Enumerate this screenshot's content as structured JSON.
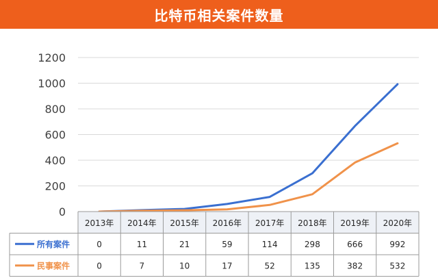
{
  "title": "比特币相关案件数量",
  "colors": {
    "title_bg": "#ee5f1c",
    "all_cases": "#3a6fd0",
    "civil_cases": "#f0924a",
    "grid": "#d9d9d9",
    "table_header_bg": "#eef1f6",
    "table_border": "#9a9a9a"
  },
  "chart_data": {
    "type": "line",
    "title": "比特币相关案件数量",
    "categories": [
      "2013年",
      "2014年",
      "2015年",
      "2016年",
      "2017年",
      "2018年",
      "2019年",
      "2020年"
    ],
    "y_ticks": [
      "0",
      "200",
      "400",
      "600",
      "800",
      "1000",
      "1200"
    ],
    "ylim": [
      0,
      1200
    ],
    "grid": true,
    "legend_position": "bottom-table",
    "series": [
      {
        "name": "所有案件",
        "color": "#3a6fd0",
        "values": [
          0,
          11,
          21,
          59,
          114,
          298,
          666,
          992
        ],
        "labels": [
          "0",
          "11",
          "21",
          "59",
          "114",
          "298",
          "666",
          "992"
        ]
      },
      {
        "name": "民事案件",
        "color": "#f0924a",
        "values": [
          0,
          7,
          10,
          17,
          52,
          135,
          382,
          532
        ],
        "labels": [
          "0",
          "7",
          "10",
          "17",
          "52",
          "135",
          "382",
          "532"
        ]
      }
    ]
  }
}
